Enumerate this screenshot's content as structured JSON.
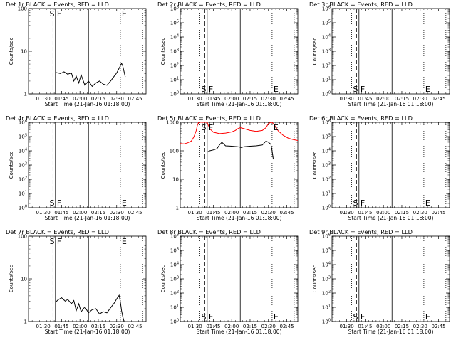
{
  "figure": {
    "start_time_label": "Start Time (21-Jan-16 01:18:00)",
    "ylabel": "Counts/sec",
    "x_tick_labels": [
      "01:30",
      "01:45",
      "02:00",
      "02:15",
      "02:30",
      "02:45"
    ]
  },
  "colors": {
    "events": "#000000",
    "lld": "#ff0000"
  },
  "chart_data": [
    {
      "type": "line",
      "title": "Det 1r BLACK = Events, RED = LLD",
      "ylabel": "Counts/sec",
      "xlabel": "Start Time (21-Jan-16 01:18:00)",
      "x_unit": "clock time",
      "xlim": [
        "01:18",
        "02:54"
      ],
      "yscale": "log",
      "ylim": [
        1,
        100
      ],
      "y_tick_labels": [
        "1",
        "10",
        "100"
      ],
      "markers": [
        {
          "label": "S",
          "time": "01:34",
          "style": "dotted"
        },
        {
          "label": "",
          "time": "01:38",
          "style": "dashed"
        },
        {
          "label": "F",
          "time": "01:40",
          "style": "solid"
        },
        {
          "label": "",
          "time": "02:07",
          "style": "solid"
        },
        {
          "label": "E",
          "time": "02:33",
          "style": "dotted"
        },
        {
          "label": "",
          "time": "02:51",
          "style": "dotted"
        }
      ],
      "series": [
        {
          "color": "#000000",
          "x": [
            "01:40",
            "01:44",
            "01:47",
            "01:50",
            "01:53",
            "01:55",
            "01:57",
            "01:59",
            "02:01",
            "02:04",
            "02:07",
            "02:10",
            "02:13",
            "02:16",
            "02:19",
            "02:22",
            "02:25",
            "02:28",
            "02:30",
            "02:32",
            "02:34",
            "02:35",
            "02:37"
          ],
          "y": [
            3.2,
            3.0,
            3.3,
            2.9,
            3.1,
            2.0,
            2.6,
            1.8,
            2.8,
            1.6,
            2.0,
            1.5,
            1.8,
            2.0,
            1.7,
            1.6,
            2.0,
            2.6,
            3.1,
            4.0,
            5.2,
            4.5,
            2.5
          ]
        }
      ]
    },
    {
      "type": "line",
      "title": "Det 2r BLACK = Events, RED = LLD",
      "ylabel": "Counts/sec",
      "xlabel": "Start Time (21-Jan-16 01:18:00)",
      "x_unit": "clock time",
      "xlim": [
        "01:18",
        "02:54"
      ],
      "yscale": "log",
      "ylim": [
        1,
        1000000
      ],
      "y_tick_labels": [
        "10^0",
        "10^1",
        "10^2",
        "10^3",
        "10^4",
        "10^5",
        "10^6"
      ],
      "markers": [
        {
          "label": "S",
          "time": "01:34",
          "style": "dotted"
        },
        {
          "label": "",
          "time": "01:38",
          "style": "dashed"
        },
        {
          "label": "F",
          "time": "01:40",
          "style": "solid"
        },
        {
          "label": "",
          "time": "02:07",
          "style": "solid"
        },
        {
          "label": "E",
          "time": "02:33",
          "style": "dotted"
        },
        {
          "label": "",
          "time": "02:51",
          "style": "dotted"
        }
      ],
      "series": []
    },
    {
      "type": "line",
      "title": "Det 3r BLACK = Events, RED = LLD",
      "ylabel": "Counts/sec",
      "xlabel": "Start Time (21-Jan-16 01:18:00)",
      "x_unit": "clock time",
      "xlim": [
        "01:18",
        "02:54"
      ],
      "yscale": "log",
      "ylim": [
        1,
        1000000
      ],
      "y_tick_labels": [
        "10^0",
        "10^1",
        "10^2",
        "10^3",
        "10^4",
        "10^5",
        "10^6"
      ],
      "markers": [
        {
          "label": "S",
          "time": "01:34",
          "style": "dotted"
        },
        {
          "label": "",
          "time": "01:38",
          "style": "dashed"
        },
        {
          "label": "F",
          "time": "01:40",
          "style": "solid"
        },
        {
          "label": "",
          "time": "02:07",
          "style": "solid"
        },
        {
          "label": "E",
          "time": "02:33",
          "style": "dotted"
        },
        {
          "label": "",
          "time": "02:51",
          "style": "dotted"
        }
      ],
      "series": []
    },
    {
      "type": "line",
      "title": "Det 4r BLACK = Events, RED = LLD",
      "ylabel": "Counts/sec",
      "xlabel": "Start Time (21-Jan-16 01:18:00)",
      "x_unit": "clock time",
      "xlim": [
        "01:18",
        "02:54"
      ],
      "yscale": "log",
      "ylim": [
        1,
        1000000
      ],
      "y_tick_labels": [
        "10^0",
        "10^1",
        "10^2",
        "10^3",
        "10^4",
        "10^5",
        "10^6"
      ],
      "markers": [
        {
          "label": "S",
          "time": "01:34",
          "style": "dotted"
        },
        {
          "label": "",
          "time": "01:38",
          "style": "dashed"
        },
        {
          "label": "F",
          "time": "01:40",
          "style": "solid"
        },
        {
          "label": "",
          "time": "02:07",
          "style": "solid"
        },
        {
          "label": "E",
          "time": "02:33",
          "style": "dotted"
        },
        {
          "label": "",
          "time": "02:51",
          "style": "dotted"
        }
      ],
      "series": []
    },
    {
      "type": "line",
      "title": "Det 5r BLACK = Events, RED = LLD",
      "ylabel": "Counts/sec",
      "xlabel": "Start Time (21-Jan-16 01:18:00)",
      "x_unit": "clock time",
      "xlim": [
        "01:18",
        "02:54"
      ],
      "yscale": "log",
      "ylim": [
        1,
        1000
      ],
      "y_tick_labels": [
        "1",
        "10",
        "100",
        "1000"
      ],
      "markers": [
        {
          "label": "S",
          "time": "01:34",
          "style": "dotted"
        },
        {
          "label": "",
          "time": "01:38",
          "style": "dashed"
        },
        {
          "label": "F",
          "time": "01:40",
          "style": "solid"
        },
        {
          "label": "",
          "time": "02:07",
          "style": "solid"
        },
        {
          "label": "E",
          "time": "02:33",
          "style": "dotted"
        },
        {
          "label": "",
          "time": "02:51",
          "style": "dotted"
        }
      ],
      "series": [
        {
          "color": "#ff0000",
          "x": [
            "01:18",
            "01:21",
            "01:24",
            "01:27",
            "01:29",
            "01:31",
            "01:32",
            "01:33",
            "01:34",
            "01:40",
            "01:42",
            "01:45",
            "01:50",
            "01:55",
            "02:00",
            "02:03",
            "02:05",
            "02:07",
            "02:10",
            "02:15",
            "02:20",
            "02:25",
            "02:28",
            "02:30",
            "02:32",
            "02:33",
            "02:35",
            "02:38",
            "02:42",
            "02:46",
            "02:50",
            "02:54"
          ],
          "y": [
            180,
            175,
            190,
            220,
            300,
            500,
            800,
            1000,
            1000,
            1000,
            600,
            450,
            400,
            420,
            460,
            520,
            600,
            650,
            600,
            520,
            480,
            520,
            650,
            900,
            1000,
            1000,
            800,
            500,
            350,
            280,
            250,
            230
          ]
        },
        {
          "color": "#000000",
          "x": [
            "01:40",
            "01:42",
            "01:44",
            "01:46",
            "01:48",
            "01:50",
            "01:52",
            "01:55",
            "02:00",
            "02:05",
            "02:08",
            "02:10",
            "02:15",
            "02:20",
            "02:25",
            "02:28",
            "02:30",
            "02:32",
            "02:33",
            "02:34"
          ],
          "y": [
            90,
            100,
            105,
            110,
            120,
            160,
            200,
            150,
            145,
            140,
            130,
            140,
            145,
            150,
            160,
            220,
            200,
            170,
            100,
            50
          ]
        }
      ]
    },
    {
      "type": "line",
      "title": "Det 6r BLACK = Events, RED = LLD",
      "ylabel": "Counts/sec",
      "xlabel": "Start Time (21-Jan-16 01:18:00)",
      "x_unit": "clock time",
      "xlim": [
        "01:18",
        "02:54"
      ],
      "yscale": "log",
      "ylim": [
        1,
        1000000
      ],
      "y_tick_labels": [
        "10^0",
        "10^1",
        "10^2",
        "10^3",
        "10^4",
        "10^5",
        "10^6"
      ],
      "markers": [
        {
          "label": "S",
          "time": "01:34",
          "style": "dotted"
        },
        {
          "label": "",
          "time": "01:38",
          "style": "dashed"
        },
        {
          "label": "F",
          "time": "01:40",
          "style": "solid"
        },
        {
          "label": "",
          "time": "02:07",
          "style": "solid"
        },
        {
          "label": "E",
          "time": "02:33",
          "style": "dotted"
        },
        {
          "label": "",
          "time": "02:51",
          "style": "dotted"
        }
      ],
      "series": []
    },
    {
      "type": "line",
      "title": "Det 7r BLACK = Events, RED = LLD",
      "ylabel": "Counts/sec",
      "xlabel": "Start Time (21-Jan-16 01:18:00)",
      "x_unit": "clock time",
      "xlim": [
        "01:18",
        "02:54"
      ],
      "yscale": "log",
      "ylim": [
        1,
        100
      ],
      "y_tick_labels": [
        "1",
        "10",
        "100"
      ],
      "markers": [
        {
          "label": "S",
          "time": "01:34",
          "style": "dotted"
        },
        {
          "label": "",
          "time": "01:38",
          "style": "dashed"
        },
        {
          "label": "F",
          "time": "01:40",
          "style": "solid"
        },
        {
          "label": "",
          "time": "02:07",
          "style": "solid"
        },
        {
          "label": "E",
          "time": "02:33",
          "style": "dotted"
        },
        {
          "label": "",
          "time": "02:51",
          "style": "dotted"
        }
      ],
      "series": [
        {
          "color": "#000000",
          "x": [
            "01:40",
            "01:42",
            "01:45",
            "01:48",
            "01:50",
            "01:53",
            "01:55",
            "01:57",
            "01:59",
            "02:01",
            "02:04",
            "02:07",
            "02:10",
            "02:13",
            "02:16",
            "02:19",
            "02:22",
            "02:25",
            "02:28",
            "02:30",
            "02:32",
            "02:33",
            "02:34",
            "02:35",
            "02:36"
          ],
          "y": [
            2.8,
            3.2,
            3.6,
            3.0,
            3.3,
            2.6,
            3.1,
            1.8,
            2.6,
            1.7,
            2.2,
            1.6,
            1.9,
            2.0,
            1.5,
            1.7,
            1.6,
            2.1,
            2.7,
            3.4,
            4.1,
            2.9,
            1.8,
            1.3,
            1.0
          ]
        }
      ]
    },
    {
      "type": "line",
      "title": "Det 8r BLACK = Events, RED = LLD",
      "ylabel": "Counts/sec",
      "xlabel": "Start Time (21-Jan-16 01:18:00)",
      "x_unit": "clock time",
      "xlim": [
        "01:18",
        "02:54"
      ],
      "yscale": "log",
      "ylim": [
        1,
        1000000
      ],
      "y_tick_labels": [
        "10^0",
        "10^1",
        "10^2",
        "10^3",
        "10^4",
        "10^5",
        "10^6"
      ],
      "markers": [
        {
          "label": "S",
          "time": "01:34",
          "style": "dotted"
        },
        {
          "label": "",
          "time": "01:38",
          "style": "dashed"
        },
        {
          "label": "F",
          "time": "01:40",
          "style": "solid"
        },
        {
          "label": "",
          "time": "02:07",
          "style": "solid"
        },
        {
          "label": "E",
          "time": "02:33",
          "style": "dotted"
        },
        {
          "label": "",
          "time": "02:51",
          "style": "dotted"
        }
      ],
      "series": []
    },
    {
      "type": "line",
      "title": "Det 9r BLACK = Events, RED = LLD",
      "ylabel": "Counts/sec",
      "xlabel": "Start Time (21-Jan-16 01:18:00)",
      "x_unit": "clock time",
      "xlim": [
        "01:18",
        "02:54"
      ],
      "yscale": "log",
      "ylim": [
        1,
        1000000
      ],
      "y_tick_labels": [
        "10^0",
        "10^1",
        "10^2",
        "10^3",
        "10^4",
        "10^5",
        "10^6"
      ],
      "markers": [
        {
          "label": "S",
          "time": "01:34",
          "style": "dotted"
        },
        {
          "label": "",
          "time": "01:38",
          "style": "dashed"
        },
        {
          "label": "F",
          "time": "01:40",
          "style": "solid"
        },
        {
          "label": "",
          "time": "02:07",
          "style": "solid"
        },
        {
          "label": "E",
          "time": "02:33",
          "style": "dotted"
        },
        {
          "label": "",
          "time": "02:51",
          "style": "dotted"
        }
      ],
      "series": []
    }
  ]
}
